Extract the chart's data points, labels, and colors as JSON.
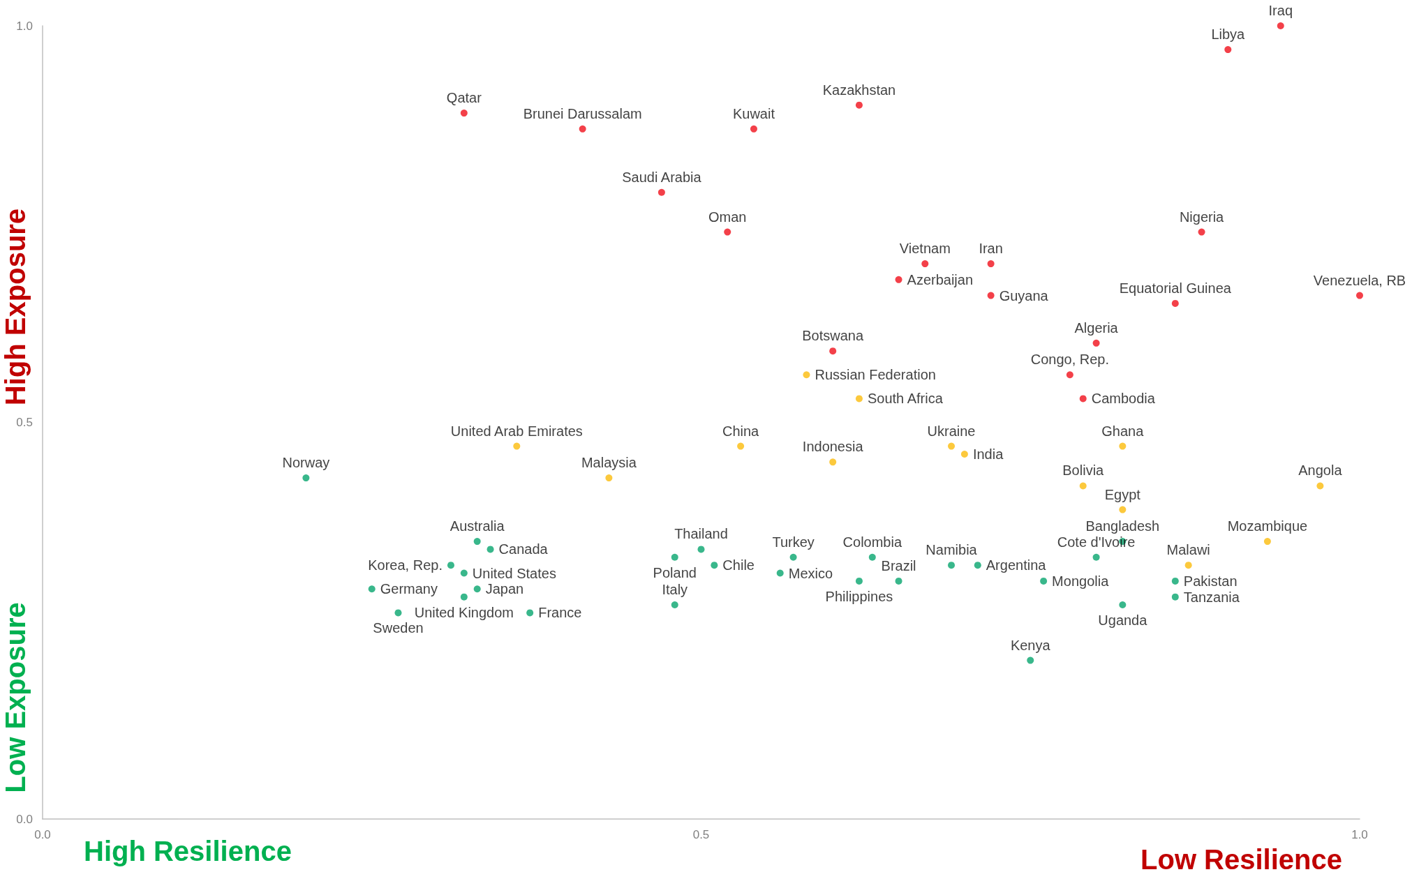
{
  "chart_data": {
    "type": "scatter",
    "marker": "circle",
    "grid": false,
    "annotations": [
      "High Resilience",
      "Low Resilience",
      "High Exposure",
      "Low Exposure"
    ],
    "xlim": [
      0,
      1
    ],
    "xticks": [
      {
        "value": 0,
        "label": "0.0"
      },
      {
        "value": 0.5,
        "label": "0.5"
      },
      {
        "value": 1,
        "label": "1.0"
      }
    ],
    "ylim": [
      0,
      1
    ],
    "yticks": [
      {
        "value": 0,
        "label": "0.0"
      },
      {
        "value": 0.5,
        "label": "0.5"
      },
      {
        "value": 1,
        "label": "1.0"
      }
    ],
    "series": [
      {
        "color": "#f0101c",
        "x": [
          0.94,
          0.9,
          0.32,
          0.41,
          0.54,
          0.62,
          0.47,
          0.52,
          0.88,
          0.67,
          0.65,
          0.72,
          0.72,
          0.86,
          1.0,
          0.8,
          0.6,
          0.78,
          0.79
        ],
        "values": [
          1.0,
          0.97,
          0.89,
          0.87,
          0.87,
          0.9,
          0.79,
          0.74,
          0.74,
          0.7,
          0.68,
          0.7,
          0.66,
          0.65,
          0.66,
          0.6,
          0.59,
          0.56,
          0.53
        ],
        "value_labels": [
          "Iraq",
          "Libya",
          "Qatar",
          "Brunei Darussalam",
          "Kuwait",
          "Kazakhstan",
          "Saudi Arabia",
          "Oman",
          "Nigeria",
          "Vietnam",
          "Azerbaijan",
          "Iran",
          "Guyana",
          "Equatorial Guinea",
          "Venezuela, RB",
          "Algeria",
          "Botswana",
          "Congo, Rep.",
          "Cambodia"
        ]
      },
      {
        "color": "#fbbc0c",
        "x": [
          0.58,
          0.62,
          0.53,
          0.36,
          0.6,
          0.43,
          0.69,
          0.7,
          0.82,
          0.79,
          0.97,
          0.82,
          0.93,
          0.87
        ],
        "values": [
          0.56,
          0.53,
          0.47,
          0.47,
          0.45,
          0.43,
          0.47,
          0.46,
          0.47,
          0.42,
          0.42,
          0.39,
          0.35,
          0.32
        ],
        "value_labels": [
          "Russian Federation",
          "South Africa",
          "China",
          "United Arab Emirates",
          "Indonesia",
          "Malaysia",
          "Ukraine",
          "India",
          "Ghana",
          "Bolivia",
          "Angola",
          "Egypt",
          "Mozambique",
          "Malawi"
        ]
      },
      {
        "color": "#07a56e",
        "x": [
          0.2,
          0.33,
          0.34,
          0.31,
          0.32,
          0.25,
          0.33,
          0.32,
          0.27,
          0.37,
          0.48,
          0.5,
          0.51,
          0.57,
          0.56,
          0.48,
          0.63,
          0.62,
          0.65,
          0.69,
          0.71,
          0.76,
          0.8,
          0.82,
          0.86,
          0.86,
          0.82,
          0.75
        ],
        "values": [
          0.43,
          0.35,
          0.34,
          0.32,
          0.31,
          0.29,
          0.29,
          0.28,
          0.26,
          0.26,
          0.33,
          0.34,
          0.32,
          0.33,
          0.31,
          0.27,
          0.33,
          0.3,
          0.3,
          0.32,
          0.32,
          0.3,
          0.33,
          0.35,
          0.3,
          0.28,
          0.27,
          0.2
        ],
        "value_labels": [
          "Norway",
          "Australia",
          "Canada",
          "Korea, Rep.",
          "United States",
          "Germany",
          "Japan",
          "United Kingdom",
          "Sweden",
          "France",
          "Poland",
          "Thailand",
          "Chile",
          "Turkey",
          "Mexico",
          "Italy",
          "Colombia",
          "Philippines",
          "Brazil",
          "Namibia",
          "Argentina",
          "Mongolia",
          "Cote d'Ivoire",
          "Bangladesh",
          "Pakistan",
          "Tanzania",
          "Uganda",
          "Kenya"
        ]
      }
    ]
  }
}
